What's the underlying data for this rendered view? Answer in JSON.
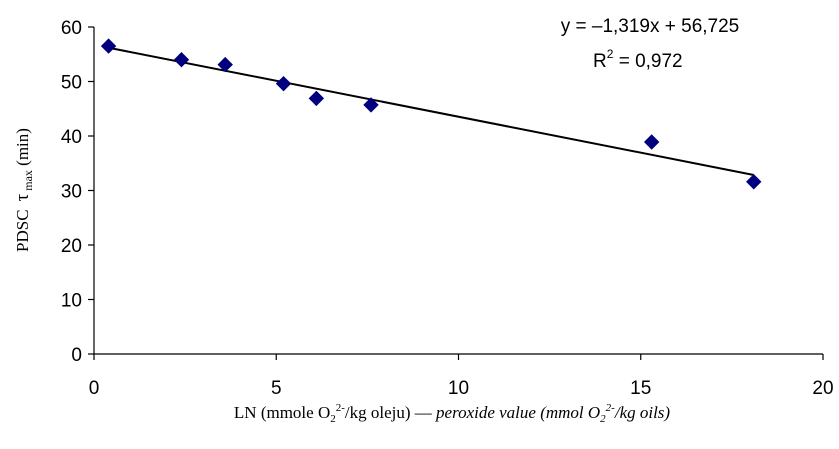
{
  "chart_data": {
    "type": "scatter",
    "title": "",
    "series": [
      {
        "x": [
          0.4,
          2.4,
          3.6,
          5.2,
          6.1,
          7.6,
          15.3,
          18.1
        ],
        "y": [
          56.5,
          54.0,
          53.1,
          49.6,
          46.9,
          45.7,
          38.9,
          31.6
        ],
        "color": "#00007f",
        "marker": "diamond"
      }
    ],
    "trendline": {
      "type": "linear",
      "slope": -1.319,
      "intercept": 56.725,
      "x_range": [
        0.4,
        18.1
      ],
      "color": "#000000"
    },
    "annotations": {
      "equation": "y = –1,319x + 56,725",
      "r2_prefix": "R",
      "r2_sup": "2",
      "r2_value": " = 0,972"
    },
    "xlim": [
      0,
      20
    ],
    "ylim": [
      0,
      60
    ],
    "x_ticks": [
      "0",
      "5",
      "10",
      "15",
      "20"
    ],
    "y_ticks": [
      "0",
      "10",
      "20",
      "30",
      "40",
      "50",
      "60"
    ],
    "ylabel": {
      "main": "PDSC",
      "tau": "τ",
      "sub": "max",
      "unit": " (min)"
    },
    "xlabel": {
      "part1": "LN (mmole O",
      "sub1": "2",
      "sup1": "2-",
      "part2": "/kg oleju) — ",
      "ital1": "peroxide value (mmol O",
      "sub2": "2",
      "sup2": "2-",
      "ital2": "/kg oils)"
    },
    "grid": false,
    "legend": "none"
  }
}
